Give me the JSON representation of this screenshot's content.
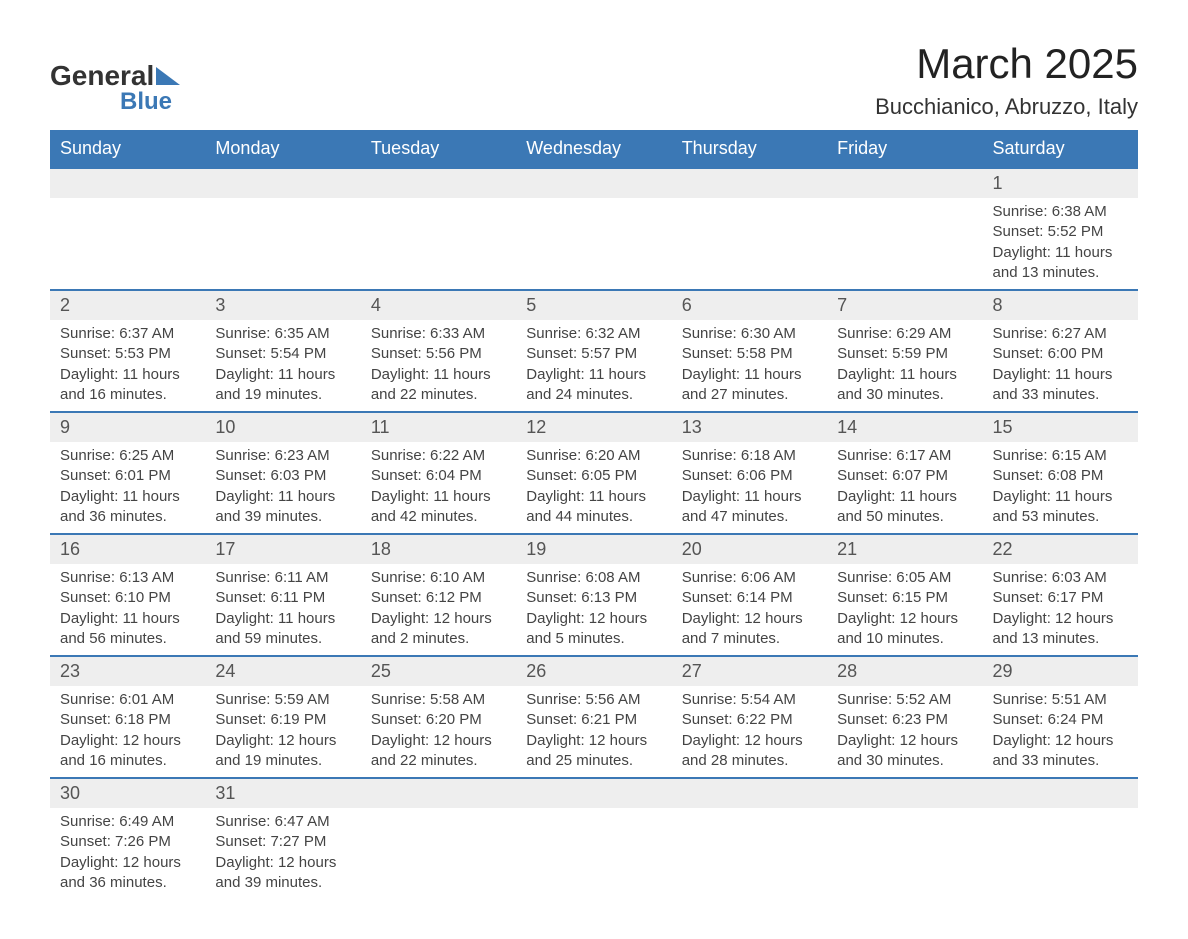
{
  "logo": {
    "text1": "General",
    "text2": "Blue"
  },
  "title": "March 2025",
  "location": "Bucchianico, Abruzzo, Italy",
  "colors": {
    "brand_blue": "#3b78b5",
    "header_bg": "#3b78b5",
    "header_text": "#ffffff",
    "daynum_bg": "#eeeeee",
    "body_text": "#444444",
    "page_bg": "#ffffff"
  },
  "weekdays": [
    "Sunday",
    "Monday",
    "Tuesday",
    "Wednesday",
    "Thursday",
    "Friday",
    "Saturday"
  ],
  "weeks": [
    {
      "nums": [
        "",
        "",
        "",
        "",
        "",
        "",
        "1"
      ],
      "cells": [
        "",
        "",
        "",
        "",
        "",
        "",
        "Sunrise: 6:38 AM\nSunset: 5:52 PM\nDaylight: 11 hours and 13 minutes."
      ]
    },
    {
      "nums": [
        "2",
        "3",
        "4",
        "5",
        "6",
        "7",
        "8"
      ],
      "cells": [
        "Sunrise: 6:37 AM\nSunset: 5:53 PM\nDaylight: 11 hours and 16 minutes.",
        "Sunrise: 6:35 AM\nSunset: 5:54 PM\nDaylight: 11 hours and 19 minutes.",
        "Sunrise: 6:33 AM\nSunset: 5:56 PM\nDaylight: 11 hours and 22 minutes.",
        "Sunrise: 6:32 AM\nSunset: 5:57 PM\nDaylight: 11 hours and 24 minutes.",
        "Sunrise: 6:30 AM\nSunset: 5:58 PM\nDaylight: 11 hours and 27 minutes.",
        "Sunrise: 6:29 AM\nSunset: 5:59 PM\nDaylight: 11 hours and 30 minutes.",
        "Sunrise: 6:27 AM\nSunset: 6:00 PM\nDaylight: 11 hours and 33 minutes."
      ]
    },
    {
      "nums": [
        "9",
        "10",
        "11",
        "12",
        "13",
        "14",
        "15"
      ],
      "cells": [
        "Sunrise: 6:25 AM\nSunset: 6:01 PM\nDaylight: 11 hours and 36 minutes.",
        "Sunrise: 6:23 AM\nSunset: 6:03 PM\nDaylight: 11 hours and 39 minutes.",
        "Sunrise: 6:22 AM\nSunset: 6:04 PM\nDaylight: 11 hours and 42 minutes.",
        "Sunrise: 6:20 AM\nSunset: 6:05 PM\nDaylight: 11 hours and 44 minutes.",
        "Sunrise: 6:18 AM\nSunset: 6:06 PM\nDaylight: 11 hours and 47 minutes.",
        "Sunrise: 6:17 AM\nSunset: 6:07 PM\nDaylight: 11 hours and 50 minutes.",
        "Sunrise: 6:15 AM\nSunset: 6:08 PM\nDaylight: 11 hours and 53 minutes."
      ]
    },
    {
      "nums": [
        "16",
        "17",
        "18",
        "19",
        "20",
        "21",
        "22"
      ],
      "cells": [
        "Sunrise: 6:13 AM\nSunset: 6:10 PM\nDaylight: 11 hours and 56 minutes.",
        "Sunrise: 6:11 AM\nSunset: 6:11 PM\nDaylight: 11 hours and 59 minutes.",
        "Sunrise: 6:10 AM\nSunset: 6:12 PM\nDaylight: 12 hours and 2 minutes.",
        "Sunrise: 6:08 AM\nSunset: 6:13 PM\nDaylight: 12 hours and 5 minutes.",
        "Sunrise: 6:06 AM\nSunset: 6:14 PM\nDaylight: 12 hours and 7 minutes.",
        "Sunrise: 6:05 AM\nSunset: 6:15 PM\nDaylight: 12 hours and 10 minutes.",
        "Sunrise: 6:03 AM\nSunset: 6:17 PM\nDaylight: 12 hours and 13 minutes."
      ]
    },
    {
      "nums": [
        "23",
        "24",
        "25",
        "26",
        "27",
        "28",
        "29"
      ],
      "cells": [
        "Sunrise: 6:01 AM\nSunset: 6:18 PM\nDaylight: 12 hours and 16 minutes.",
        "Sunrise: 5:59 AM\nSunset: 6:19 PM\nDaylight: 12 hours and 19 minutes.",
        "Sunrise: 5:58 AM\nSunset: 6:20 PM\nDaylight: 12 hours and 22 minutes.",
        "Sunrise: 5:56 AM\nSunset: 6:21 PM\nDaylight: 12 hours and 25 minutes.",
        "Sunrise: 5:54 AM\nSunset: 6:22 PM\nDaylight: 12 hours and 28 minutes.",
        "Sunrise: 5:52 AM\nSunset: 6:23 PM\nDaylight: 12 hours and 30 minutes.",
        "Sunrise: 5:51 AM\nSunset: 6:24 PM\nDaylight: 12 hours and 33 minutes."
      ]
    },
    {
      "nums": [
        "30",
        "31",
        "",
        "",
        "",
        "",
        ""
      ],
      "cells": [
        "Sunrise: 6:49 AM\nSunset: 7:26 PM\nDaylight: 12 hours and 36 minutes.",
        "Sunrise: 6:47 AM\nSunset: 7:27 PM\nDaylight: 12 hours and 39 minutes.",
        "",
        "",
        "",
        "",
        ""
      ]
    }
  ]
}
